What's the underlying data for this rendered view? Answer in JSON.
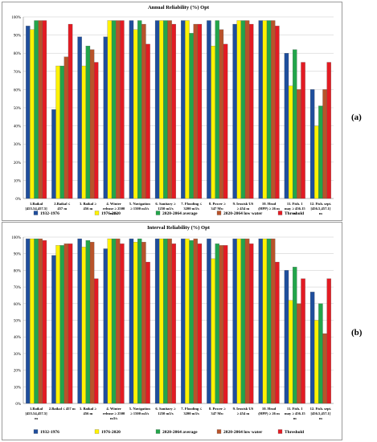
{
  "colors": {
    "1932-1976": "#1f4e9c",
    "1976-2020": "#fff200",
    "2020-2064 average": "#22a54a",
    "2020-2064 low water": "#b8532a",
    "Threshold": "#e31b23"
  },
  "panel_labels": [
    "(a)",
    "(b)"
  ],
  "chart_data": [
    {
      "type": "bar",
      "title": "Annual Reliability (%) Opt",
      "ylim": [
        0,
        100
      ],
      "yticks": [
        "0%",
        "10%",
        "20%",
        "30%",
        "40%",
        "50%",
        "60%",
        "70%",
        "80%",
        "90%",
        "100%"
      ],
      "grid": true,
      "legend_position": "bottom",
      "categories": [
        [
          "1.Baikal",
          "[455.54,457.5]",
          "m"
        ],
        [
          "2.Baikal ≤",
          "457 m"
        ],
        [
          "3. Baikal ≥",
          "456 m"
        ],
        [
          "4. Winter",
          "release ≥ 2500",
          "m3/s"
        ],
        [
          "5. Navigation",
          "≥ 1500 m3/s"
        ],
        [
          "6. Sanitary ≥",
          "1250 m3/s"
        ],
        [
          "7. Flooding ≤",
          "3200 m3/s"
        ],
        [
          "8. Power ≥",
          "347 Mw"
        ],
        [
          "9. Irustsk US",
          "≥ 454 m"
        ],
        [
          "10. Head",
          "(HPP) ≥ 26 m"
        ],
        [
          "11. Fish. 1",
          "may ≥ 456.15",
          "m"
        ],
        [
          "12. Fish. sept.",
          "[456.5,457.1]",
          "m"
        ]
      ],
      "series": [
        {
          "name": "1932-1976",
          "values": [
            95,
            49,
            89,
            89,
            98,
            98,
            98,
            98,
            96,
            98,
            80,
            60
          ]
        },
        {
          "name": "1976-2020",
          "values": [
            93,
            73,
            73,
            98,
            93,
            98,
            98,
            84,
            98,
            98,
            62,
            40
          ]
        },
        {
          "name": "2020-2064 average",
          "values": [
            98,
            73,
            84,
            98,
            98,
            98,
            91,
            98,
            98,
            98,
            82,
            51
          ]
        },
        {
          "name": "2020-2064 low water",
          "values": [
            98,
            78,
            82,
            98,
            96,
            98,
            96,
            93,
            98,
            98,
            60,
            60
          ]
        },
        {
          "name": "Threshold",
          "values": [
            98,
            96,
            75,
            98,
            85,
            96,
            96,
            85,
            96,
            95,
            75,
            75
          ]
        }
      ]
    },
    {
      "type": "bar",
      "title": "Interval Reliability (%) Opt",
      "ylim": [
        0,
        100
      ],
      "yticks": [
        "0%",
        "10%",
        "20%",
        "30%",
        "40%",
        "50%",
        "60%",
        "70%",
        "80%",
        "90%",
        "100%"
      ],
      "grid": true,
      "legend_position": "bottom",
      "categories": [
        [
          "1.Baikal",
          "[455.54,457.5]",
          "m"
        ],
        [
          "2.Baikal ≤ 457 m"
        ],
        [
          "3. Baikal ≥",
          "456 m"
        ],
        [
          "4. Winter",
          "release ≥ 2500",
          "m3/s"
        ],
        [
          "5. Navigation",
          "≥ 1500 m3/s"
        ],
        [
          "6. Sanitary ≥",
          "1250 m3/s"
        ],
        [
          "7. Flooding ≤",
          "3200 m3/s"
        ],
        [
          "8. Power ≥",
          "347 Mw"
        ],
        [
          "9. Irustsk US",
          "≥ 454 m"
        ],
        [
          "10. Head",
          "(HPP) ≥ 26 m"
        ],
        [
          "11. Fish. 1",
          "may ≥ 456.15",
          "m"
        ],
        [
          "12. Fish. sept.",
          "[456.5,457.1]",
          "m"
        ]
      ],
      "series": [
        {
          "name": "1932-1976",
          "values": [
            99,
            89,
            99,
            93,
            99,
            99,
            99,
            99,
            99,
            99,
            80,
            67
          ]
        },
        {
          "name": "1976-2020",
          "values": [
            99,
            95,
            94,
            99,
            97,
            99,
            99,
            87,
            99,
            99,
            62,
            50
          ]
        },
        {
          "name": "2020-2064 average",
          "values": [
            99,
            95,
            98,
            99,
            99,
            99,
            98,
            96,
            99,
            99,
            82,
            60
          ]
        },
        {
          "name": "2020-2064 low water",
          "values": [
            99,
            96,
            97,
            99,
            97,
            99,
            99,
            95,
            99,
            99,
            60,
            42
          ]
        },
        {
          "name": "Threshold",
          "values": [
            98,
            96,
            75,
            96,
            85,
            96,
            96,
            95,
            96,
            85,
            75,
            75
          ]
        }
      ]
    }
  ]
}
